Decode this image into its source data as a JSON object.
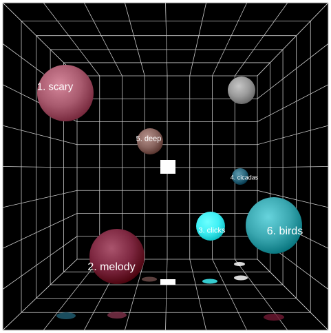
{
  "scene": {
    "background": "#000000",
    "grid_color": "#c8c8c8",
    "spheres": [
      {
        "label": "1. scary",
        "color": "#a85a6e"
      },
      {
        "label": "",
        "color": "#9a9a9a"
      },
      {
        "label": "5. deep",
        "color": "#8a6660"
      },
      {
        "label": "4. cicadas",
        "color": "#2f6b80"
      },
      {
        "label": "3. clicks",
        "color": "#3ff0f5"
      },
      {
        "label": "6. birds",
        "color": "#3aa7b0"
      },
      {
        "label": "2. melody",
        "color": "#7d2740"
      }
    ],
    "shadows": [
      {
        "color": "#6b4a48"
      },
      {
        "color": "#ffffff"
      },
      {
        "color": "#3ff0f5"
      },
      {
        "color": "#ffffff"
      },
      {
        "color": "#1f5a6e"
      },
      {
        "color": "#7a3048"
      },
      {
        "color": "#6b1830"
      },
      {
        "color": "#2f8a95"
      }
    ],
    "markers": [
      {
        "color": "#ffffff"
      },
      {
        "color": "#ffffff"
      }
    ]
  }
}
